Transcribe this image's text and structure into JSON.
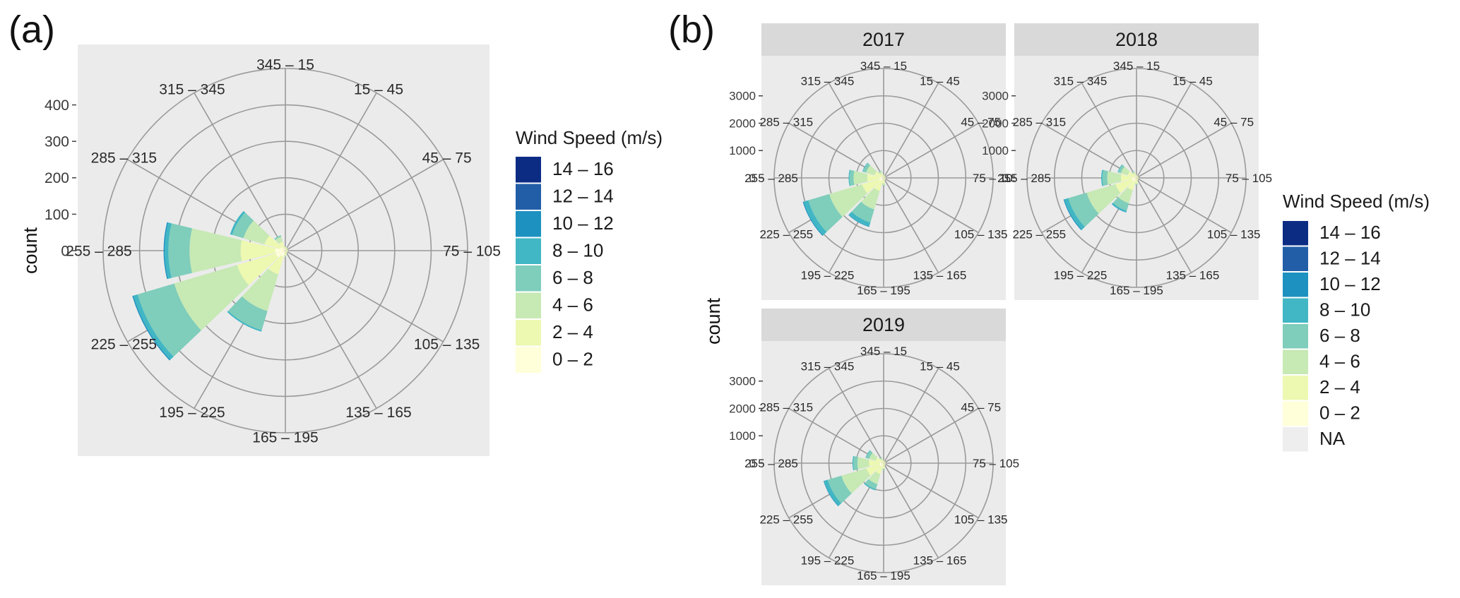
{
  "panel_labels": {
    "a": "(a)",
    "b": "(b)"
  },
  "colors": {
    "panel_bg": "#ebebeb",
    "grid": "#9a9a9a",
    "strip_bg": "#d9d9d9",
    "speed_bins": [
      "#ffffd9",
      "#edf8b1",
      "#c7e9b4",
      "#7fcdbb",
      "#41b6c4",
      "#1d91c0",
      "#225ea8",
      "#0c2c84"
    ],
    "na": "#eeeeee"
  },
  "chart_data": [
    {
      "id": "a",
      "type": "wind-rose (stacked polar bar)",
      "title": "",
      "ylabel": "count",
      "ylim": [
        0,
        500
      ],
      "y_ticks": [
        "0",
        "100",
        "200",
        "300",
        "400"
      ],
      "direction_bins": [
        "345 – 15",
        "15 – 45",
        "45 – 75",
        "75 – 105",
        "105 – 135",
        "135 – 165",
        "165 – 195",
        "195 – 225",
        "225 – 255",
        "255 – 285",
        "285 – 315",
        "315 – 345"
      ],
      "legend": {
        "title": "Wind Speed (m/s)",
        "labels": [
          "14 – 16",
          "12 – 14",
          "10 – 12",
          "8 – 10",
          "6 – 8",
          "4 – 6",
          "2 – 4",
          "0 – 2"
        ]
      },
      "speed_bins": [
        "0 – 2",
        "2 – 4",
        "4 – 6",
        "6 – 8",
        "8 – 10",
        "10 – 12",
        "12 – 14",
        "14 – 16"
      ],
      "series": [
        {
          "direction": "345 – 15",
          "counts": [
            4,
            5,
            2,
            0,
            0,
            0,
            0,
            0
          ]
        },
        {
          "direction": "15 – 45",
          "counts": [
            3,
            4,
            2,
            0,
            0,
            0,
            0,
            0
          ]
        },
        {
          "direction": "45 – 75",
          "counts": [
            3,
            3,
            1,
            0,
            0,
            0,
            0,
            0
          ]
        },
        {
          "direction": "75 – 105",
          "counts": [
            4,
            3,
            1,
            0,
            0,
            0,
            0,
            0
          ]
        },
        {
          "direction": "105 – 135",
          "counts": [
            3,
            3,
            1,
            0,
            0,
            0,
            0,
            0
          ]
        },
        {
          "direction": "135 – 165",
          "counts": [
            4,
            3,
            1,
            0,
            0,
            0,
            0,
            0
          ]
        },
        {
          "direction": "165 – 195",
          "counts": [
            5,
            8,
            4,
            0,
            0,
            0,
            0,
            0
          ]
        },
        {
          "direction": "195 – 225",
          "counts": [
            18,
            50,
            105,
            55,
            4,
            0,
            0,
            0
          ]
        },
        {
          "direction": "225 – 255",
          "counts": [
            28,
            110,
            180,
            105,
            12,
            3,
            0,
            0
          ]
        },
        {
          "direction": "255 – 285",
          "counts": [
            28,
            95,
            140,
            58,
            10,
            3,
            0,
            0
          ]
        },
        {
          "direction": "285 – 315",
          "counts": [
            15,
            45,
            60,
            32,
            6,
            0,
            0,
            0
          ]
        },
        {
          "direction": "315 – 345",
          "counts": [
            8,
            18,
            14,
            4,
            0,
            0,
            0,
            0
          ]
        }
      ]
    },
    {
      "id": "b",
      "type": "wind-rose facets (stacked polar bar)",
      "ylabel": "count",
      "ylim": [
        0,
        4000
      ],
      "y_ticks": [
        "0",
        "1000",
        "2000",
        "3000"
      ],
      "direction_bins": [
        "345 – 15",
        "15 – 45",
        "45 – 75",
        "75 – 105",
        "105 – 135",
        "135 – 165",
        "165 – 195",
        "195 – 225",
        "225 – 255",
        "255 – 285",
        "285 – 315",
        "315 – 345"
      ],
      "legend": {
        "title": "Wind Speed (m/s)",
        "labels": [
          "14 – 16",
          "12 – 14",
          "10 – 12",
          "8 – 10",
          "6 – 8",
          "4 – 6",
          "2 – 4",
          "0 – 2",
          "NA"
        ]
      },
      "speed_bins": [
        "0 – 2",
        "2 – 4",
        "4 – 6",
        "6 – 8",
        "8 – 10",
        "10 – 12",
        "12 – 14",
        "14 – 16"
      ],
      "facets": [
        {
          "year": "2017",
          "series": [
            {
              "direction": "345 – 15",
              "counts": [
                40,
                60,
                20,
                0,
                0,
                0,
                0,
                0
              ]
            },
            {
              "direction": "15 – 45",
              "counts": [
                30,
                50,
                10,
                0,
                0,
                0,
                0,
                0
              ]
            },
            {
              "direction": "45 – 75",
              "counts": [
                30,
                40,
                10,
                0,
                0,
                0,
                0,
                0
              ]
            },
            {
              "direction": "75 – 105",
              "counts": [
                30,
                40,
                10,
                0,
                0,
                0,
                0,
                0
              ]
            },
            {
              "direction": "105 – 135",
              "counts": [
                30,
                40,
                10,
                0,
                0,
                0,
                0,
                0
              ]
            },
            {
              "direction": "135 – 165",
              "counts": [
                40,
                50,
                10,
                0,
                0,
                0,
                0,
                0
              ]
            },
            {
              "direction": "165 – 195",
              "counts": [
                60,
                140,
                60,
                10,
                0,
                0,
                0,
                0
              ]
            },
            {
              "direction": "195 – 225",
              "counts": [
                120,
                380,
                700,
                500,
                150,
                20,
                0,
                0
              ]
            },
            {
              "direction": "225 – 255",
              "counts": [
                180,
                640,
                1250,
                800,
                180,
                30,
                0,
                0
              ]
            },
            {
              "direction": "255 – 285",
              "counts": [
                150,
                450,
                500,
                150,
                30,
                0,
                0,
                0
              ]
            },
            {
              "direction": "285 – 315",
              "counts": [
                100,
                250,
                320,
                120,
                20,
                0,
                0,
                0
              ]
            },
            {
              "direction": "315 – 345",
              "counts": [
                60,
                120,
                80,
                20,
                0,
                0,
                0,
                0
              ]
            }
          ]
        },
        {
          "year": "2018",
          "series": [
            {
              "direction": "345 – 15",
              "counts": [
                40,
                60,
                20,
                0,
                0,
                0,
                0,
                0
              ]
            },
            {
              "direction": "15 – 45",
              "counts": [
                30,
                50,
                10,
                0,
                0,
                0,
                0,
                0
              ]
            },
            {
              "direction": "45 – 75",
              "counts": [
                30,
                40,
                10,
                0,
                0,
                0,
                0,
                0
              ]
            },
            {
              "direction": "75 – 105",
              "counts": [
                30,
                40,
                10,
                0,
                0,
                0,
                0,
                0
              ]
            },
            {
              "direction": "105 – 135",
              "counts": [
                30,
                40,
                10,
                0,
                0,
                0,
                0,
                0
              ]
            },
            {
              "direction": "135 – 165",
              "counts": [
                40,
                50,
                10,
                0,
                0,
                0,
                0,
                0
              ]
            },
            {
              "direction": "165 – 195",
              "counts": [
                60,
                130,
                50,
                10,
                0,
                0,
                0,
                0
              ]
            },
            {
              "direction": "195 – 225",
              "counts": [
                120,
                350,
                500,
                280,
                60,
                10,
                0,
                0
              ]
            },
            {
              "direction": "225 – 255",
              "counts": [
                180,
                620,
                1100,
                700,
                150,
                30,
                0,
                0
              ]
            },
            {
              "direction": "255 – 285",
              "counts": [
                150,
                420,
                500,
                180,
                40,
                0,
                0,
                0
              ]
            },
            {
              "direction": "285 – 315",
              "counts": [
                100,
                240,
                260,
                100,
                20,
                0,
                0,
                0
              ]
            },
            {
              "direction": "315 – 345",
              "counts": [
                60,
                110,
                70,
                20,
                0,
                0,
                0,
                0
              ]
            }
          ]
        },
        {
          "year": "2019",
          "series": [
            {
              "direction": "345 – 15",
              "counts": [
                40,
                50,
                20,
                0,
                0,
                0,
                0,
                0
              ]
            },
            {
              "direction": "15 – 45",
              "counts": [
                30,
                40,
                10,
                0,
                0,
                0,
                0,
                0
              ]
            },
            {
              "direction": "45 – 75",
              "counts": [
                30,
                40,
                10,
                0,
                0,
                0,
                0,
                0
              ]
            },
            {
              "direction": "75 – 105",
              "counts": [
                30,
                40,
                10,
                0,
                0,
                0,
                0,
                0
              ]
            },
            {
              "direction": "105 – 135",
              "counts": [
                30,
                40,
                10,
                0,
                0,
                0,
                0,
                0
              ]
            },
            {
              "direction": "135 – 165",
              "counts": [
                40,
                50,
                10,
                0,
                0,
                0,
                0,
                0
              ]
            },
            {
              "direction": "165 – 195",
              "counts": [
                60,
                120,
                50,
                10,
                0,
                0,
                0,
                0
              ]
            },
            {
              "direction": "195 – 225",
              "counts": [
                120,
                300,
                380,
                200,
                40,
                0,
                0,
                0
              ]
            },
            {
              "direction": "225 – 255",
              "counts": [
                160,
                500,
                950,
                520,
                140,
                20,
                0,
                0
              ]
            },
            {
              "direction": "255 – 285",
              "counts": [
                140,
                400,
                420,
                150,
                30,
                0,
                0,
                0
              ]
            },
            {
              "direction": "285 – 315",
              "counts": [
                90,
                220,
                240,
                120,
                20,
                0,
                0,
                0
              ]
            },
            {
              "direction": "315 – 345",
              "counts": [
                50,
                100,
                60,
                20,
                0,
                0,
                0,
                0
              ]
            }
          ]
        }
      ]
    }
  ]
}
